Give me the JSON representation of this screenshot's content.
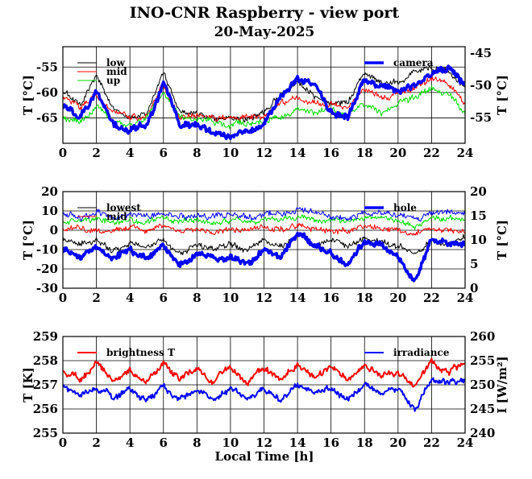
{
  "title": "INO-CNR Raspberry - view port",
  "subtitle": "20-May-2025",
  "xlabel": "Local Time [h]",
  "colors": {
    "black": "#000000",
    "red": "#ff0000",
    "green": "#00dd00",
    "blue": "#0000ff"
  },
  "chart_data": [
    {
      "type": "line",
      "xlim": [
        0,
        24
      ],
      "ylim": [
        -70,
        -51
      ],
      "y2lim": [
        -59,
        -44
      ],
      "xticks": [
        "0",
        "2",
        "4",
        "6",
        "8",
        "10",
        "12",
        "14",
        "16",
        "18",
        "20",
        "22",
        "24"
      ],
      "yticks": [
        {
          "v": -55,
          "label": "-55"
        },
        {
          "v": -60,
          "label": "-60"
        },
        {
          "v": -65,
          "label": "-65"
        }
      ],
      "y2ticks": [
        {
          "v": -45,
          "label": "-45"
        },
        {
          "v": -50,
          "label": "-50"
        },
        {
          "v": -55,
          "label": "-55"
        }
      ],
      "ylabel": "T [°C]",
      "y2label": "T [°C]",
      "grid": true,
      "x": [
        0,
        1,
        2,
        3,
        4,
        5,
        6,
        7,
        8,
        9,
        10,
        11,
        12,
        13,
        14,
        15,
        16,
        17,
        18,
        19,
        20,
        21,
        22,
        23,
        24
      ],
      "series": [
        {
          "name": "low",
          "color": "black",
          "width": 1,
          "axis": "left",
          "values": [
            -60,
            -62,
            -57,
            -63,
            -65,
            -64,
            -56,
            -64,
            -64,
            -65,
            -65,
            -65,
            -64,
            -60,
            -58,
            -61,
            -62,
            -62,
            -56,
            -58,
            -58,
            -56,
            -55,
            -56,
            -59
          ]
        },
        {
          "name": "mid",
          "color": "red",
          "width": 1,
          "axis": "left",
          "values": [
            -61,
            -63,
            -60,
            -64,
            -65,
            -65,
            -58,
            -65,
            -65,
            -65,
            -65,
            -65,
            -65,
            -62,
            -61,
            -62,
            -62,
            -63,
            -59,
            -61,
            -60,
            -59,
            -57,
            -58,
            -62
          ]
        },
        {
          "name": "up",
          "color": "green",
          "width": 1,
          "axis": "left",
          "values": [
            -65,
            -66,
            -63,
            -66,
            -66,
            -65,
            -60,
            -65,
            -65,
            -66,
            -66,
            -66,
            -66,
            -65,
            -63,
            -64,
            -64,
            -65,
            -62,
            -64,
            -62,
            -61,
            -59,
            -60,
            -64
          ]
        },
        {
          "name": "camera",
          "color": "blue",
          "width": 3.5,
          "axis": "right",
          "values": [
            -53,
            -55,
            -51,
            -56,
            -57,
            -56,
            -50,
            -56,
            -56,
            -57,
            -58,
            -57,
            -56,
            -52,
            -49,
            -50,
            -54,
            -55,
            -49,
            -50,
            -51,
            -50,
            -48,
            -47,
            -50
          ]
        }
      ]
    },
    {
      "type": "line",
      "xlim": [
        0,
        24
      ],
      "ylim": [
        -30,
        20
      ],
      "y2lim": [
        0,
        20
      ],
      "xticks": [
        "0",
        "2",
        "4",
        "6",
        "8",
        "10",
        "12",
        "14",
        "16",
        "18",
        "20",
        "22",
        "24"
      ],
      "yticks": [
        {
          "v": 20,
          "label": "20"
        },
        {
          "v": 10,
          "label": "10"
        },
        {
          "v": 0,
          "label": "0"
        },
        {
          "v": -10,
          "label": "-10"
        },
        {
          "v": -20,
          "label": "-20"
        },
        {
          "v": -30,
          "label": "-30"
        }
      ],
      "y2ticks": [
        {
          "v": 20,
          "label": "20"
        },
        {
          "v": 15,
          "label": "15"
        },
        {
          "v": 10,
          "label": "10"
        },
        {
          "v": 5,
          "label": "5"
        },
        {
          "v": 0,
          "label": "0"
        }
      ],
      "ylabel": "T [°C]",
      "y2label": "T [°C]",
      "grid": true,
      "x": [
        0,
        1,
        2,
        3,
        4,
        5,
        6,
        7,
        8,
        9,
        10,
        11,
        12,
        13,
        14,
        15,
        16,
        17,
        18,
        19,
        20,
        21,
        22,
        23,
        24
      ],
      "series": [
        {
          "name": "lowest",
          "color": "black",
          "width": 1,
          "axis": "left",
          "values": [
            -4,
            -8,
            -6,
            -10,
            -6,
            -9,
            -5,
            -12,
            -8,
            -10,
            -6,
            -9,
            -5,
            -8,
            -3,
            -7,
            -5,
            -9,
            -4,
            -6,
            -8,
            -12,
            -5,
            -8,
            -3
          ]
        },
        {
          "name": "mid",
          "color": "red",
          "width": 1,
          "axis": "left",
          "values": [
            1,
            0,
            2,
            -1,
            1,
            0,
            2,
            0,
            1,
            -1,
            1,
            0,
            2,
            0,
            2,
            1,
            0,
            -1,
            2,
            1,
            0,
            -2,
            1,
            0,
            1
          ]
        },
        {
          "name": "",
          "color": "green",
          "width": 1,
          "axis": "left",
          "values": [
            5,
            4,
            6,
            5,
            5,
            4,
            6,
            4,
            5,
            4,
            5,
            5,
            6,
            5,
            7,
            6,
            5,
            4,
            6,
            6,
            5,
            3,
            6,
            5,
            6
          ]
        },
        {
          "name": "",
          "color": "blue",
          "width": 1,
          "axis": "left",
          "values": [
            8,
            7,
            9,
            7,
            8,
            7,
            9,
            7,
            8,
            7,
            8,
            7,
            9,
            8,
            10,
            9,
            8,
            7,
            9,
            9,
            8,
            6,
            10,
            9,
            9
          ]
        },
        {
          "name": "hole",
          "color": "blue",
          "width": 3.5,
          "axis": "right",
          "values": [
            8,
            7,
            9,
            6,
            8,
            6,
            9,
            5,
            7,
            6,
            6,
            5,
            8,
            6,
            11,
            9,
            7,
            5,
            10,
            9,
            7,
            1,
            10,
            9,
            9
          ]
        }
      ]
    },
    {
      "type": "line",
      "xlim": [
        0,
        24
      ],
      "ylim": [
        255,
        259
      ],
      "y2lim": [
        240,
        260
      ],
      "xticks": [
        "0",
        "2",
        "4",
        "6",
        "8",
        "10",
        "12",
        "14",
        "16",
        "18",
        "20",
        "22",
        "24"
      ],
      "yticks": [
        {
          "v": 259,
          "label": "259"
        },
        {
          "v": 258,
          "label": "258"
        },
        {
          "v": 257,
          "label": "257"
        },
        {
          "v": 256,
          "label": "256"
        },
        {
          "v": 255,
          "label": "255"
        }
      ],
      "y2ticks": [
        {
          "v": 260,
          "label": "260"
        },
        {
          "v": 255,
          "label": "255"
        },
        {
          "v": 250,
          "label": "250"
        },
        {
          "v": 245,
          "label": "245"
        },
        {
          "v": 240,
          "label": "240"
        }
      ],
      "ylabel": "T [K]",
      "y2label": "I [W/m²]",
      "grid": true,
      "x": [
        0,
        1,
        2,
        3,
        4,
        5,
        6,
        7,
        8,
        9,
        10,
        11,
        12,
        13,
        14,
        15,
        16,
        17,
        18,
        19,
        20,
        21,
        22,
        23,
        24
      ],
      "series": [
        {
          "name": "brightness T",
          "color": "red",
          "width": 2,
          "axis": "left",
          "values": [
            257.6,
            257.2,
            257.9,
            257.2,
            257.6,
            257.1,
            257.8,
            257.3,
            257.7,
            257.1,
            257.7,
            257.2,
            257.7,
            257.2,
            257.8,
            257.3,
            257.7,
            257.2,
            257.8,
            257.4,
            257.5,
            256.9,
            258.0,
            257.5,
            257.9
          ]
        },
        {
          "name": "irradiance",
          "color": "blue",
          "width": 2,
          "axis": "right",
          "values": [
            250,
            248,
            250,
            247,
            249,
            247,
            250,
            247,
            249,
            247,
            249,
            247,
            249,
            247,
            250,
            248,
            249,
            247,
            250,
            248,
            249,
            245,
            251,
            250,
            251
          ]
        }
      ]
    }
  ]
}
